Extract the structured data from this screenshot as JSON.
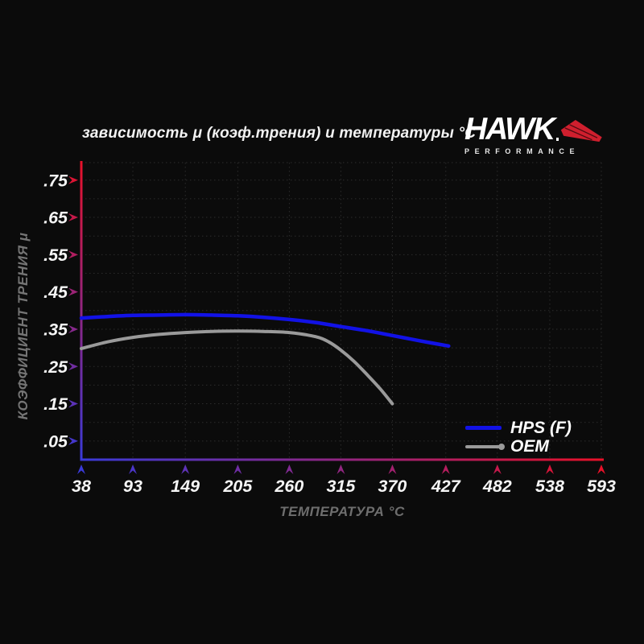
{
  "header": {
    "title": "зависимость μ (коэф.трения) и температуры °C",
    "logo": {
      "brand": "HAWK",
      "subtitle": "PERFORMANCE"
    }
  },
  "colors": {
    "background": "#0b0b0b",
    "grid": "#2c2c2c",
    "tick_text": "#f5f5f5",
    "muted_text": "#707070",
    "axis_red": "#e81129",
    "axis_blue": "#3a3ad8",
    "logo_red": "#cf1f2e",
    "hps_blue": "#1212e6",
    "oem_gray": "#9a9a9a"
  },
  "chart_data": {
    "type": "line",
    "title": "зависимость μ (коэф.трения) и температуры °C",
    "xlabel": "ТЕМПЕРАТУРА °C",
    "ylabel": "КОЭФФИЦИЕНТ ТРЕНИЯ μ",
    "xlim": [
      38,
      593
    ],
    "ylim": [
      0,
      0.8
    ],
    "grid": "dotted",
    "legend_position": "lower right",
    "x_ticks": [
      38,
      93,
      149,
      205,
      260,
      315,
      370,
      427,
      482,
      538,
      593
    ],
    "y_ticks": [
      0.75,
      0.65,
      0.55,
      0.45,
      0.35,
      0.25,
      0.15,
      0.05
    ],
    "y_tick_labels": [
      ".75",
      ".65",
      ".55",
      ".45",
      ".35",
      ".25",
      ".15",
      ".05"
    ],
    "series": [
      {
        "name": "HPS (F)",
        "color": "#1212e6",
        "stroke_width": 4.5,
        "x": [
          38,
          66,
          93,
          121,
          149,
          177,
          205,
          232,
          260,
          288,
          315,
          343,
          370,
          399,
          430
        ],
        "y": [
          0.38,
          0.384,
          0.387,
          0.388,
          0.389,
          0.388,
          0.386,
          0.382,
          0.376,
          0.368,
          0.357,
          0.346,
          0.333,
          0.319,
          0.305
        ]
      },
      {
        "name": "OEM",
        "color": "#9a9a9a",
        "stroke_width": 4,
        "x": [
          38,
          66,
          93,
          121,
          149,
          177,
          205,
          232,
          260,
          288,
          302,
          315,
          329,
          343,
          357,
          370
        ],
        "y": [
          0.298,
          0.316,
          0.328,
          0.336,
          0.341,
          0.344,
          0.345,
          0.344,
          0.341,
          0.33,
          0.316,
          0.294,
          0.264,
          0.228,
          0.19,
          0.15
        ]
      }
    ]
  }
}
